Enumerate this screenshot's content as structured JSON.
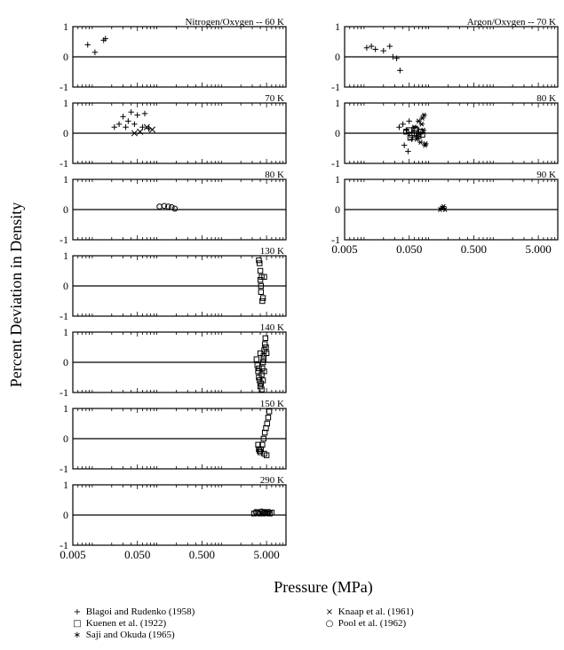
{
  "figure": {
    "ylabel": "Percent Deviation in Density",
    "xlabel": "Pressure (MPa)"
  },
  "legend": [
    {
      "symbol": "+",
      "label": "Blagoi and Rudenko (1958)"
    },
    {
      "symbol": "□",
      "label": "Kuenen et al. (1922)"
    },
    {
      "symbol": "∗",
      "label": "Saji and Okuda (1965)"
    },
    {
      "symbol": "×",
      "label": "Knaap et al. (1961)"
    },
    {
      "symbol": "○",
      "label": "Pool et al. (1962)"
    }
  ],
  "chart_data": [
    {
      "type": "scatter",
      "mixture": "Nitrogen/Oxygen",
      "title": "Nitrogen/Oxygen  --  60 K",
      "temperature": "60 K",
      "xscale": "log",
      "xlim": [
        0.005,
        10
      ],
      "ylim": [
        -1,
        1
      ],
      "yticks": [
        -1,
        0,
        1
      ],
      "series": [
        {
          "name": "Blagoi and Rudenko (1958)",
          "marker": "+",
          "x": [
            0.0085,
            0.011,
            0.015,
            0.016
          ],
          "y": [
            0.4,
            0.15,
            0.55,
            0.6
          ]
        }
      ]
    },
    {
      "type": "scatter",
      "mixture": "Nitrogen/Oxygen",
      "title": "70 K",
      "temperature": "70 K",
      "xscale": "log",
      "xlim": [
        0.005,
        10
      ],
      "ylim": [
        -1,
        1
      ],
      "yticks": [
        -1,
        0,
        1
      ],
      "series": [
        {
          "name": "Blagoi and Rudenko (1958)",
          "marker": "+",
          "x": [
            0.022,
            0.026,
            0.03,
            0.033,
            0.036,
            0.04,
            0.045,
            0.05,
            0.06,
            0.065,
            0.075
          ],
          "y": [
            0.2,
            0.3,
            0.55,
            0.2,
            0.4,
            0.7,
            0.3,
            0.6,
            0.2,
            0.65,
            0.15
          ]
        },
        {
          "name": "Knaap et al. (1961)",
          "marker": "x",
          "x": [
            0.045,
            0.055,
            0.07,
            0.085
          ],
          "y": [
            0.0,
            0.05,
            0.2,
            0.12
          ]
        }
      ]
    },
    {
      "type": "scatter",
      "mixture": "Nitrogen/Oxygen",
      "title": "80 K",
      "temperature": "80 K",
      "xscale": "log",
      "xlim": [
        0.005,
        10
      ],
      "ylim": [
        -1,
        1
      ],
      "yticks": [
        -1,
        0,
        1
      ],
      "series": [
        {
          "name": "Pool et al. (1962)",
          "marker": "o",
          "x": [
            0.11,
            0.13,
            0.15,
            0.17,
            0.19
          ],
          "y": [
            0.1,
            0.12,
            0.1,
            0.08,
            0.03
          ]
        }
      ]
    },
    {
      "type": "scatter",
      "mixture": "Nitrogen/Oxygen",
      "title": "130 K",
      "temperature": "130 K",
      "xscale": "log",
      "xlim": [
        0.005,
        10
      ],
      "ylim": [
        -1,
        1
      ],
      "yticks": [
        -1,
        0,
        1
      ],
      "series": [
        {
          "name": "Kuenen et al. (1922)",
          "marker": "square",
          "x": [
            3.8,
            3.9,
            4.0,
            4.0,
            4.1,
            4.1,
            4.2,
            4.3,
            4.4,
            4.6
          ],
          "y": [
            0.85,
            0.75,
            0.5,
            0.2,
            0.0,
            -0.2,
            0.3,
            -0.5,
            -0.4,
            0.3
          ]
        }
      ]
    },
    {
      "type": "scatter",
      "mixture": "Nitrogen/Oxygen",
      "title": "140 K",
      "temperature": "140 K",
      "xscale": "log",
      "xlim": [
        0.005,
        10
      ],
      "ylim": [
        -1,
        1
      ],
      "yticks": [
        -1,
        0,
        1
      ],
      "series": [
        {
          "name": "Kuenen et al. (1922)",
          "marker": "square",
          "x": [
            3.5,
            3.6,
            3.7,
            3.8,
            3.9,
            4.0,
            4.1,
            4.2,
            4.3,
            4.4,
            4.5,
            4.6,
            4.7,
            4.8,
            4.9,
            5.0,
            4.2,
            4.4,
            4.0,
            3.8,
            4.6,
            4.5
          ],
          "y": [
            0.1,
            -0.1,
            -0.3,
            -0.5,
            -0.6,
            -0.8,
            -0.7,
            -0.4,
            -0.2,
            0.0,
            0.2,
            0.4,
            0.6,
            0.8,
            0.5,
            0.3,
            -0.9,
            -0.6,
            0.3,
            -0.2,
            -0.3,
            0.1
          ]
        }
      ]
    },
    {
      "type": "scatter",
      "mixture": "Nitrogen/Oxygen",
      "title": "150 K",
      "temperature": "150 K",
      "xscale": "log",
      "xlim": [
        0.005,
        10
      ],
      "ylim": [
        -1,
        1
      ],
      "yticks": [
        -1,
        0,
        1
      ],
      "series": [
        {
          "name": "Kuenen et al. (1922)",
          "marker": "square",
          "x": [
            3.7,
            3.8,
            3.9,
            4.0,
            4.1,
            4.3,
            4.5,
            4.7,
            4.9,
            5.1,
            5.3,
            5.5,
            4.6,
            5.0
          ],
          "y": [
            -0.2,
            -0.35,
            -0.4,
            -0.45,
            -0.35,
            -0.2,
            0.0,
            0.2,
            0.35,
            0.5,
            0.7,
            0.9,
            -0.5,
            -0.55
          ]
        }
      ]
    },
    {
      "type": "scatter",
      "mixture": "Nitrogen/Oxygen",
      "title": "290 K",
      "temperature": "290 K",
      "xscale": "log",
      "xlim": [
        0.005,
        10
      ],
      "ylim": [
        -1,
        1
      ],
      "yticks": [
        -1,
        0,
        1
      ],
      "xticklabels": [
        "0.005",
        "0.050",
        "0.500",
        "5.000"
      ],
      "series": [
        {
          "name": "Kuenen et al. (1922)",
          "marker": "square",
          "x": [
            3.2,
            3.6,
            4.0,
            4.4,
            4.8,
            5.2,
            5.6,
            6.0
          ],
          "y": [
            0.05,
            0.08,
            0.1,
            0.05,
            0.08,
            0.1,
            0.05,
            0.08
          ]
        },
        {
          "name": "Pool et al. (1962)",
          "marker": "o",
          "x": [
            3.4,
            3.8,
            4.2,
            4.6,
            5.0,
            5.4
          ],
          "y": [
            0.1,
            0.05,
            0.12,
            0.1,
            0.06,
            0.1
          ]
        }
      ]
    },
    {
      "type": "scatter",
      "mixture": "Argon/Oxygen",
      "title": "Argon/Oxygen  --  70 K",
      "temperature": "70 K",
      "xscale": "log",
      "xlim": [
        0.005,
        10
      ],
      "ylim": [
        -1,
        1
      ],
      "yticks": [
        -1,
        0,
        1
      ],
      "series": [
        {
          "name": "Blagoi and Rudenko (1958)",
          "marker": "+",
          "x": [
            0.011,
            0.013,
            0.015,
            0.02,
            0.025,
            0.028,
            0.032,
            0.036
          ],
          "y": [
            0.3,
            0.35,
            0.25,
            0.2,
            0.35,
            0.0,
            -0.05,
            -0.45
          ]
        }
      ]
    },
    {
      "type": "scatter",
      "mixture": "Argon/Oxygen",
      "title": "80 K",
      "temperature": "80 K",
      "xscale": "log",
      "xlim": [
        0.005,
        10
      ],
      "ylim": [
        -1,
        1
      ],
      "yticks": [
        -1,
        0,
        1
      ],
      "series": [
        {
          "name": "Blagoi and Rudenko (1958)",
          "marker": "+",
          "x": [
            0.035,
            0.04,
            0.042,
            0.045,
            0.05,
            0.055,
            0.048
          ],
          "y": [
            0.2,
            0.3,
            -0.4,
            0.1,
            0.4,
            -0.2,
            -0.6
          ]
        },
        {
          "name": "Kuenen et al. (1922)",
          "marker": "square",
          "x": [
            0.045,
            0.05,
            0.055,
            0.06,
            0.065,
            0.07,
            0.075,
            0.08,
            0.052,
            0.062
          ],
          "y": [
            0.05,
            0.1,
            -0.05,
            0.0,
            0.1,
            -0.1,
            0.05,
            -0.05,
            -0.15,
            0.15
          ]
        },
        {
          "name": "Saji and Okuda (1965)",
          "marker": "asterisk",
          "x": [
            0.06,
            0.065,
            0.07,
            0.075,
            0.08,
            0.085,
            0.09,
            0.072,
            0.078,
            0.088,
            0.068,
            0.083
          ],
          "y": [
            0.2,
            -0.2,
            0.4,
            -0.3,
            0.5,
            0.6,
            -0.35,
            0.0,
            0.3,
            -0.4,
            -0.1,
            0.1
          ]
        }
      ]
    },
    {
      "type": "scatter",
      "mixture": "Argon/Oxygen",
      "title": "90 K",
      "temperature": "90 K",
      "xscale": "log",
      "xlim": [
        0.005,
        10
      ],
      "ylim": [
        -1,
        1
      ],
      "yticks": [
        -1,
        0,
        1
      ],
      "xticklabels": [
        "0.005",
        "0.050",
        "0.500",
        "5.000"
      ],
      "series": [
        {
          "name": "Saji and Okuda (1965)",
          "marker": "asterisk",
          "x": [
            0.15,
            0.16,
            0.17,
            0.18,
            0.165
          ],
          "y": [
            0.0,
            0.05,
            0.1,
            0.0,
            0.05
          ]
        }
      ]
    }
  ]
}
